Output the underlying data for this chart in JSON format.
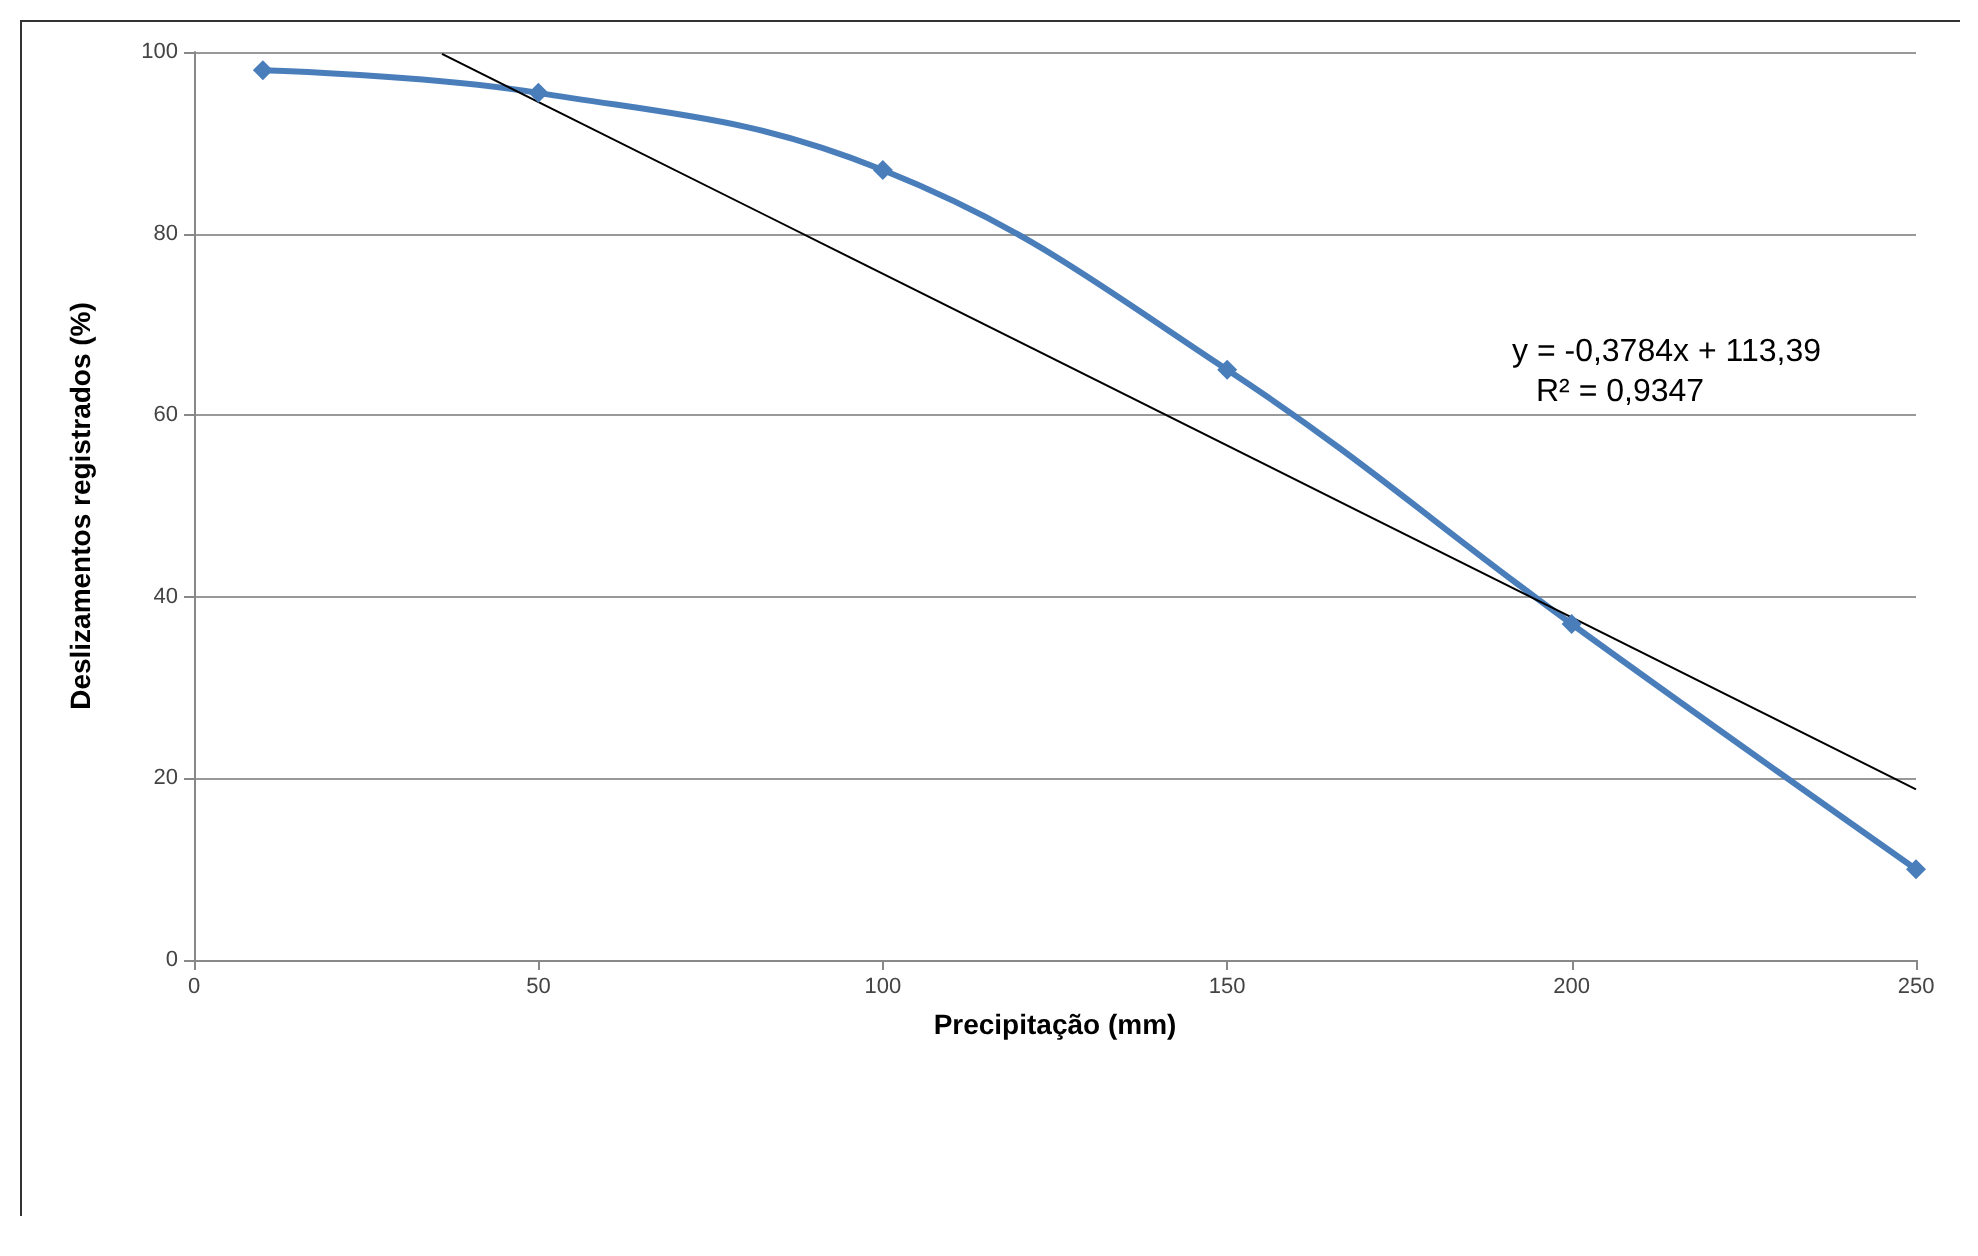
{
  "chart_data": {
    "type": "line",
    "xlabel": "Precipitação (mm)",
    "ylabel": "Deslizamentos registrados (%)",
    "x": [
      10,
      50,
      100,
      150,
      200,
      250
    ],
    "series": [
      {
        "color": "#4a7ebb",
        "values": [
          98,
          95.5,
          87,
          65,
          37,
          10
        ],
        "marker": "diamond"
      },
      {
        "type": "line",
        "color": "#000000",
        "x": [
          36,
          250
        ],
        "values": [
          99.8,
          18.8
        ],
        "marker": "none"
      }
    ],
    "xlim": [
      0,
      250
    ],
    "xticks": [
      0,
      50,
      100,
      150,
      200,
      250
    ],
    "ylim": [
      0,
      100
    ],
    "yticks": [
      0,
      20,
      40,
      60,
      80,
      100
    ],
    "grid": "y",
    "annotations": [
      "y = -0,3784x + 113,39",
      "R² = 0,9347"
    ]
  }
}
